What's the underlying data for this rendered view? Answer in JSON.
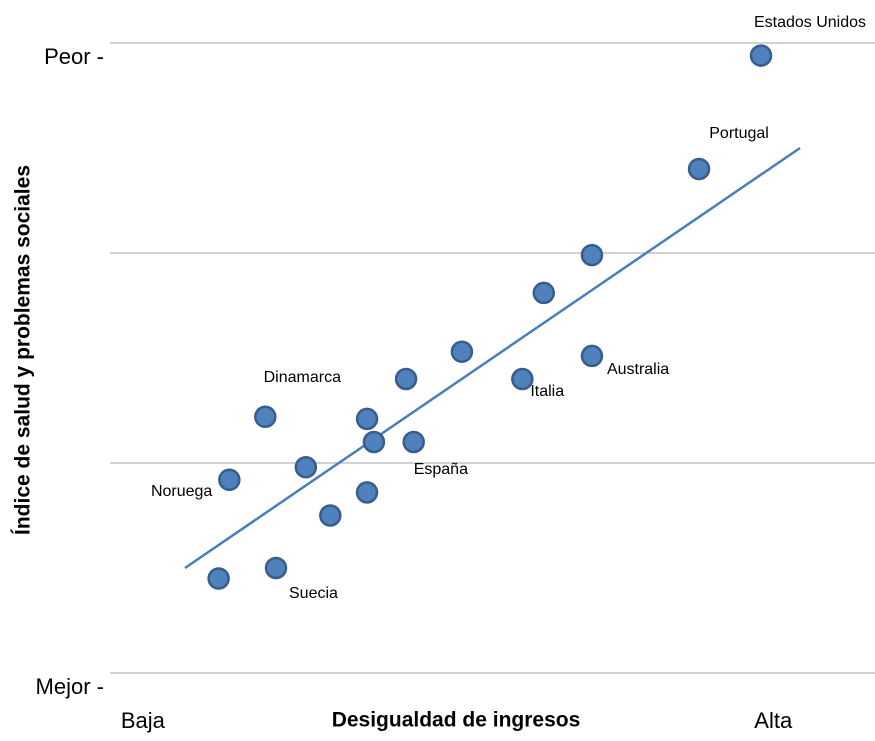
{
  "chart_data": {
    "type": "scatter",
    "x_label": "Desigualdad de ingresos",
    "y_label": "Índice de salud y problemas sociales",
    "xlim": [
      0,
      10
    ],
    "ylim": [
      0,
      3
    ],
    "xticks": [
      {
        "value": 0.43,
        "label": "Baja"
      },
      {
        "value": 8.67,
        "label": "Alta"
      }
    ],
    "yticks": [
      {
        "value": 0,
        "label": "Mejor -"
      },
      {
        "value": 3,
        "label": "Peor -"
      }
    ],
    "ygrid": [
      0,
      1,
      2,
      3
    ],
    "grid": true,
    "color": "#4f81bd",
    "x": [
      8.51,
      7.7,
      6.3,
      5.67,
      6.3,
      5.39,
      4.6,
      3.87,
      3.36,
      3.45,
      3.97,
      2.03,
      2.56,
      1.56,
      3.36,
      2.88,
      1.42,
      2.17
    ],
    "values": [
      2.94,
      2.4,
      1.99,
      1.81,
      1.51,
      1.4,
      1.53,
      1.4,
      1.21,
      1.1,
      1.1,
      1.22,
      0.98,
      0.92,
      0.86,
      0.75,
      0.45,
      0.5
    ],
    "point_labels": [
      "Estados Unidos",
      "Portugal",
      null,
      null,
      "Australia",
      "Italia",
      null,
      null,
      null,
      null,
      "España",
      "Dinamarca",
      null,
      "Noruega",
      null,
      null,
      null,
      "Suecia"
    ],
    "trendline": {
      "color": "#4a7ebb",
      "x": [
        0.98,
        9.02
      ],
      "values": [
        0.5,
        2.5
      ]
    }
  }
}
